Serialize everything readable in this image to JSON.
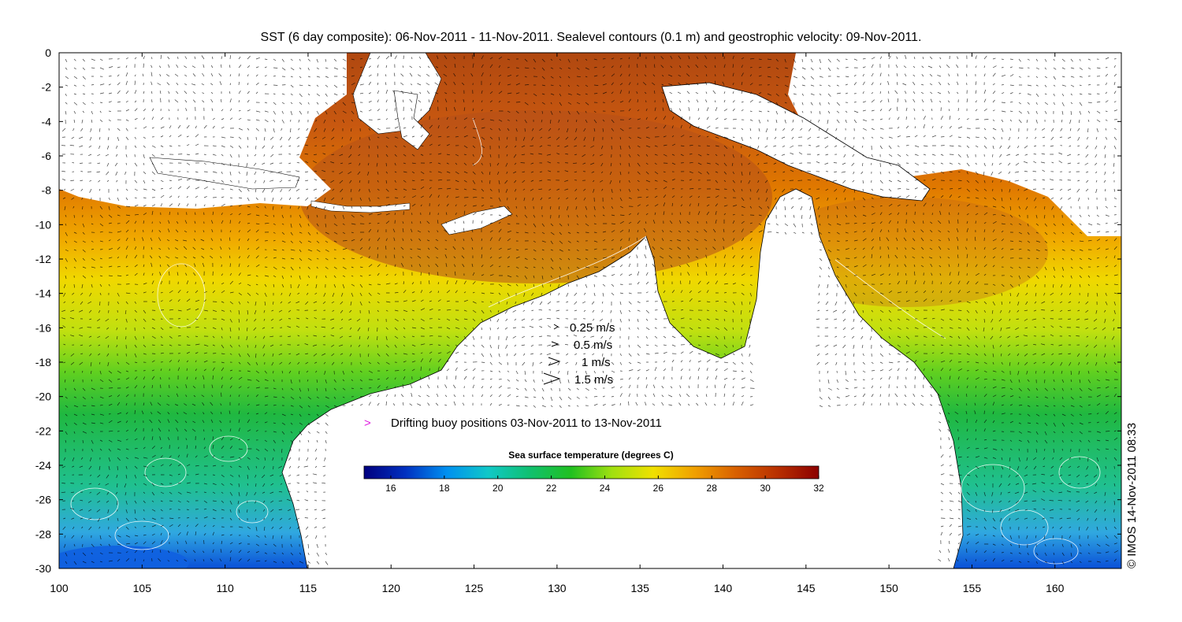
{
  "title": "SST (6 day composite): 06-Nov-2011 - 11-Nov-2011. Sealevel contours (0.1 m) and geostrophic velocity: 09-Nov-2011.",
  "credit": "© IMOS 14-Nov-2011 08:33",
  "axes": {
    "x": {
      "min": 100,
      "max": 164,
      "ticks": [
        100,
        105,
        110,
        115,
        120,
        125,
        130,
        135,
        140,
        145,
        150,
        155,
        160
      ]
    },
    "y": {
      "min": -30,
      "max": 0,
      "ticks": [
        0,
        -2,
        -4,
        -6,
        -8,
        -10,
        -12,
        -14,
        -16,
        -18,
        -20,
        -22,
        -24,
        -26,
        -28,
        -30
      ]
    }
  },
  "velocity_legend": [
    {
      "label": "0.25 m/s",
      "speed": 0.25
    },
    {
      "label": "0.5 m/s",
      "speed": 0.5
    },
    {
      "label": "1 m/s",
      "speed": 1.0
    },
    {
      "label": "1.5 m/s",
      "speed": 1.5
    }
  ],
  "buoy_legend": {
    "label": "Drifting buoy positions 03-Nov-2011 to 13-Nov-2011",
    "marker": ">",
    "color": "#e020e0"
  },
  "colorbar": {
    "title": "Sea surface temperature (degrees C)",
    "min": 15,
    "max": 32,
    "ticks": [
      16,
      18,
      20,
      22,
      24,
      26,
      28,
      30,
      32
    ],
    "stops": [
      "#00007f",
      "#0030c0",
      "#0090f0",
      "#10c8c8",
      "#10c070",
      "#20c020",
      "#a0e010",
      "#f0e000",
      "#f0a000",
      "#d86000",
      "#b83000",
      "#8c0000"
    ]
  },
  "chart_data": {
    "type": "heatmap",
    "title": "SST (6 day composite): 06-Nov-2011 - 11-Nov-2011. Sealevel contours (0.1 m) and geostrophic velocity: 09-Nov-2011.",
    "xlim": [
      100,
      164
    ],
    "ylim": [
      -30,
      0
    ],
    "colorbar_range": [
      15,
      32
    ],
    "x_ticks": [
      100,
      105,
      110,
      115,
      120,
      125,
      130,
      135,
      140,
      145,
      150,
      155,
      160
    ],
    "y_ticks": [
      0,
      -2,
      -4,
      -6,
      -8,
      -10,
      -12,
      -14,
      -16,
      -18,
      -20,
      -22,
      -24,
      -26,
      -28,
      -30
    ]
  }
}
